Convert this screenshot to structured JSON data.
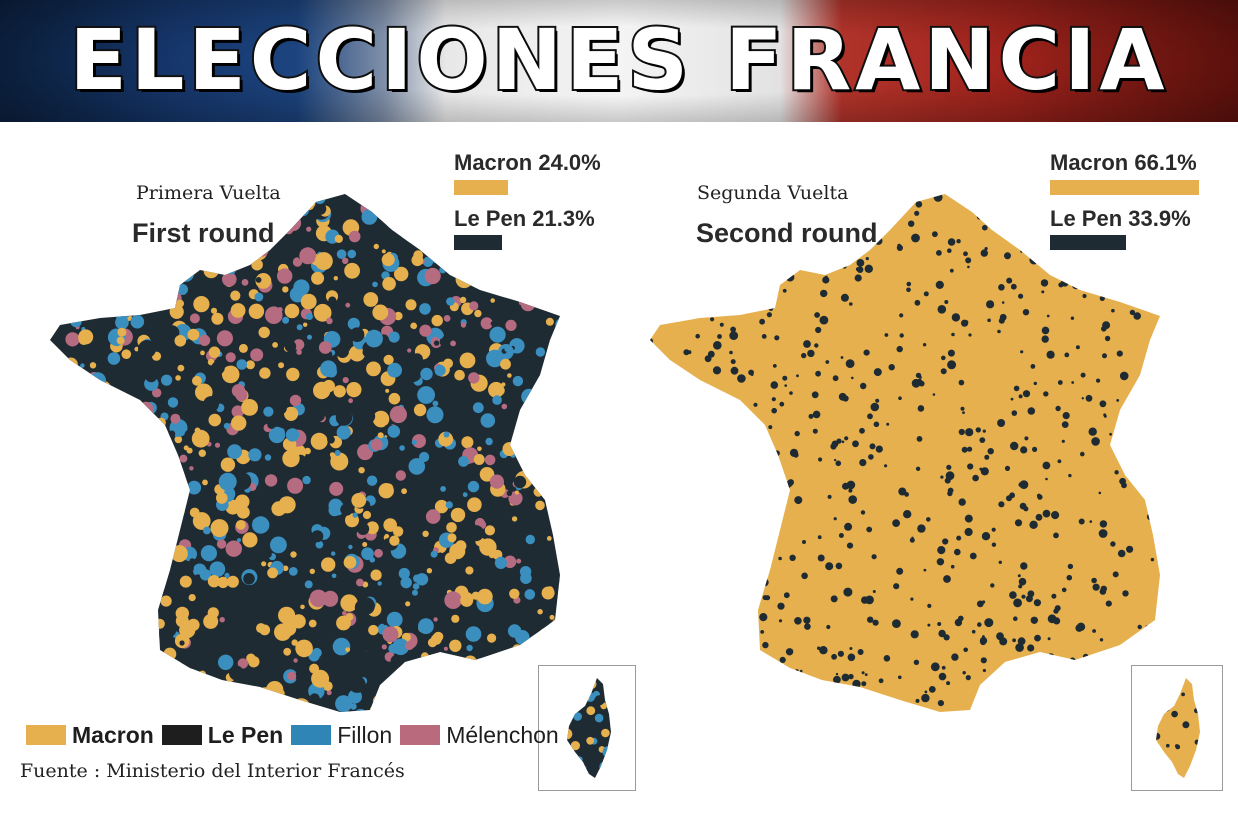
{
  "banner": {
    "title": "ELECCIONES FRANCIA"
  },
  "first_round": {
    "title_es": "Primera Vuelta",
    "title_en": "First round",
    "results": [
      {
        "label": "Macron 24.0%",
        "candidate": "Macron",
        "share": 24.0,
        "color": "#e6b04f"
      },
      {
        "label": "Le Pen 21.3%",
        "candidate": "Le Pen",
        "share": 21.3,
        "color": "#1f2b33"
      }
    ]
  },
  "second_round": {
    "title_es": "Segunda Vuelta",
    "title_en": "Second round",
    "results": [
      {
        "label": "Macron 66.1%",
        "candidate": "Macron",
        "share": 66.1,
        "color": "#e6b04f"
      },
      {
        "label": "Le Pen 33.9%",
        "candidate": "Le Pen",
        "share": 33.9,
        "color": "#1f2b33"
      }
    ]
  },
  "legend": [
    {
      "label": "Macron",
      "color": "#e6b04f",
      "bold": true
    },
    {
      "label": "Le Pen",
      "color": "#1e1e1e",
      "bold": true
    },
    {
      "label": "Fillon",
      "color": "#2f86b6",
      "bold": false
    },
    {
      "label": "Mélenchon",
      "color": "#b96a7d",
      "bold": false
    }
  ],
  "source": "Fuente : Ministerio del Interior Francés",
  "colors": {
    "macron": "#e6b04f",
    "lepen": "#1f2b33",
    "fillon": "#3b8fbf",
    "melenchon": "#b56b80"
  }
}
